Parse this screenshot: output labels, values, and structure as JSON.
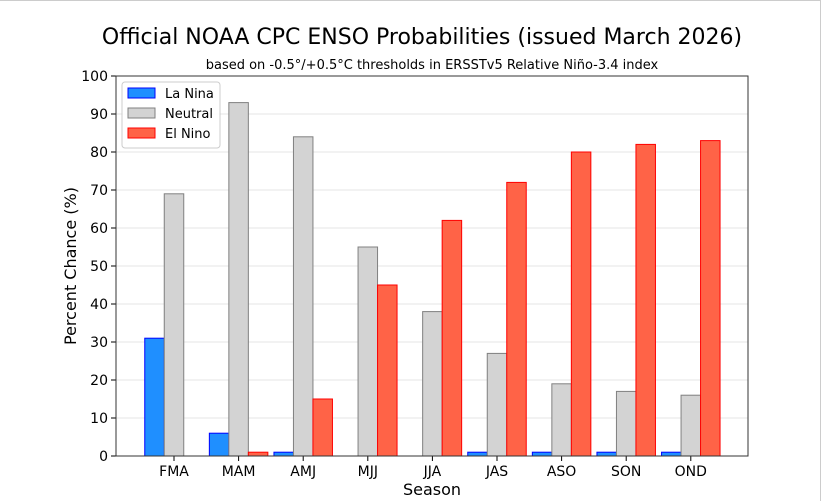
{
  "chart_data": {
    "type": "bar",
    "title": "Official NOAA CPC ENSO Probabilities (issued March 2026)",
    "subtitle": "based on -0.5°/+0.5°C thresholds in ERSSTv5 Relative Niño-3.4 index",
    "xlabel": "Season",
    "ylabel": "Percent Chance (%)",
    "ylim": [
      0,
      100
    ],
    "yticks": [
      0,
      10,
      20,
      30,
      40,
      50,
      60,
      70,
      80,
      90,
      100
    ],
    "grid": true,
    "legend_position": "top-left",
    "categories": [
      "FMA",
      "MAM",
      "AMJ",
      "MJJ",
      "JJA",
      "JAS",
      "ASO",
      "SON",
      "OND"
    ],
    "series": [
      {
        "name": "La Nina",
        "color": "#1f8fff",
        "edge": "#0000ff",
        "values": [
          31,
          6,
          1,
          0,
          0,
          1,
          1,
          1,
          1
        ]
      },
      {
        "name": "Neutral",
        "color": "#d3d3d3",
        "edge": "#808080",
        "values": [
          69,
          93,
          84,
          55,
          38,
          27,
          19,
          17,
          16
        ]
      },
      {
        "name": "El Nino",
        "color": "#ff6347",
        "edge": "#ff0000",
        "values": [
          0,
          1,
          15,
          45,
          62,
          72,
          80,
          82,
          83
        ]
      }
    ]
  }
}
